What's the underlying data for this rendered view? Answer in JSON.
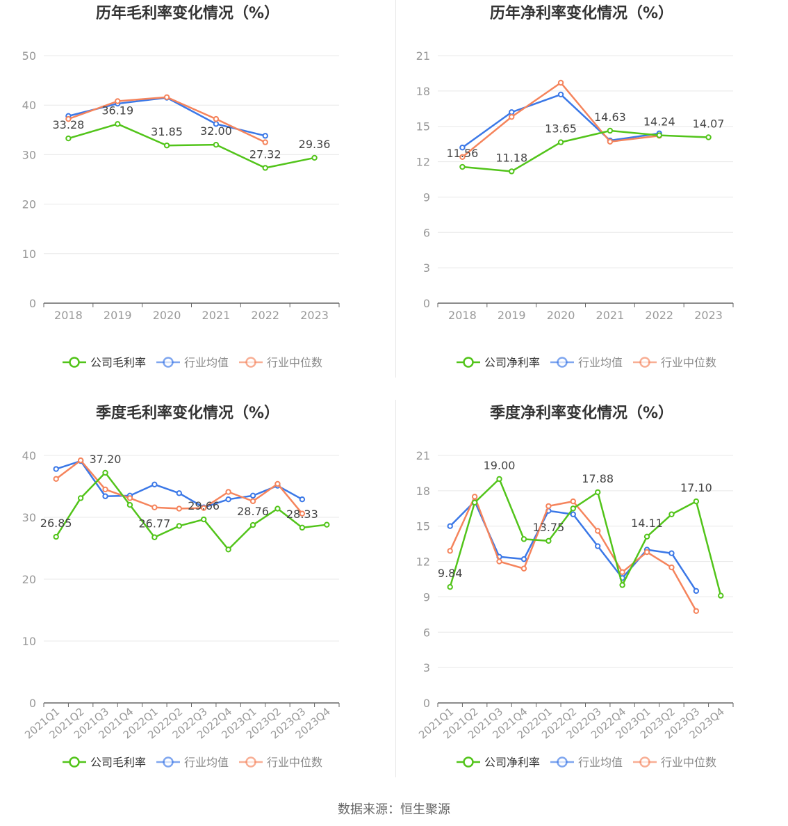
{
  "source": "数据来源：恒生聚源",
  "colors": {
    "company": "#52c41a",
    "avg": "#3b78e7",
    "median": "#f5845c",
    "axis": "#999999",
    "grid": "#e8e8e8"
  },
  "chart_data": [
    {
      "id": "annual-gross",
      "type": "line",
      "title": "历年毛利率变化情况（%）",
      "categories": [
        "2018",
        "2019",
        "2020",
        "2021",
        "2022",
        "2023"
      ],
      "ylim": [
        0,
        50
      ],
      "yticks": [
        0,
        10,
        20,
        30,
        40,
        50
      ],
      "grid": true,
      "legend_placement": "bottom",
      "series": [
        {
          "name": "公司毛利率",
          "color": "#52c41a",
          "values": [
            33.28,
            36.19,
            31.85,
            32.0,
            27.32,
            29.36
          ],
          "labels": [
            "33.28",
            "36.19",
            "31.85",
            "32.00",
            "27.32",
            "29.36"
          ]
        },
        {
          "name": "行业均值",
          "color": "#3b78e7",
          "values": [
            37.8,
            40.3,
            41.5,
            36.2,
            33.8,
            null
          ]
        },
        {
          "name": "行业中位数",
          "color": "#f5845c",
          "values": [
            37.2,
            40.8,
            41.6,
            37.2,
            32.5,
            null
          ]
        }
      ]
    },
    {
      "id": "annual-net",
      "type": "line",
      "title": "历年净利率变化情况（%）",
      "categories": [
        "2018",
        "2019",
        "2020",
        "2021",
        "2022",
        "2023"
      ],
      "ylim": [
        0,
        21
      ],
      "yticks": [
        0,
        3,
        6,
        9,
        12,
        15,
        18,
        21
      ],
      "grid": true,
      "legend_placement": "bottom",
      "series": [
        {
          "name": "公司净利率",
          "color": "#52c41a",
          "values": [
            11.56,
            11.18,
            13.65,
            14.63,
            14.24,
            14.07
          ],
          "labels": [
            "11.56",
            "11.18",
            "13.65",
            "14.63",
            "14.24",
            "14.07"
          ]
        },
        {
          "name": "行业均值",
          "color": "#3b78e7",
          "values": [
            13.2,
            16.2,
            17.7,
            13.8,
            14.4,
            null
          ]
        },
        {
          "name": "行业中位数",
          "color": "#f5845c",
          "values": [
            12.4,
            15.8,
            18.7,
            13.7,
            14.2,
            null
          ]
        }
      ]
    },
    {
      "id": "quarter-gross",
      "type": "line",
      "title": "季度毛利率变化情况（%）",
      "categories": [
        "2021Q1",
        "2021Q2",
        "2021Q3",
        "2021Q4",
        "2022Q1",
        "2022Q2",
        "2022Q3",
        "2022Q4",
        "2023Q1",
        "2023Q2",
        "2023Q3",
        "2023Q4"
      ],
      "ylim": [
        0,
        40
      ],
      "yticks": [
        0,
        10,
        20,
        30,
        40
      ],
      "grid": true,
      "legend_placement": "bottom",
      "series": [
        {
          "name": "公司毛利率",
          "color": "#52c41a",
          "values": [
            26.85,
            33.1,
            37.2,
            32.0,
            26.77,
            28.6,
            29.66,
            24.8,
            28.76,
            31.4,
            28.33,
            28.8
          ],
          "labels": [
            "26.85",
            null,
            "37.20",
            null,
            "26.77",
            null,
            "29.66",
            null,
            "28.76",
            null,
            "28.33",
            null
          ]
        },
        {
          "name": "行业均值",
          "color": "#3b78e7",
          "values": [
            37.8,
            39.1,
            33.4,
            33.5,
            35.3,
            33.9,
            31.6,
            32.9,
            33.5,
            35.1,
            32.9,
            null
          ]
        },
        {
          "name": "行业中位数",
          "color": "#f5845c",
          "values": [
            36.2,
            39.2,
            34.5,
            33.1,
            31.6,
            31.4,
            31.5,
            34.1,
            32.6,
            35.4,
            30.6,
            null
          ]
        }
      ]
    },
    {
      "id": "quarter-net",
      "type": "line",
      "title": "季度净利率变化情况（%）",
      "categories": [
        "2021Q1",
        "2021Q2",
        "2021Q3",
        "2021Q4",
        "2022Q1",
        "2022Q2",
        "2022Q3",
        "2022Q4",
        "2023Q1",
        "2023Q2",
        "2023Q3",
        "2023Q4"
      ],
      "ylim": [
        0,
        21
      ],
      "yticks": [
        0,
        3,
        6,
        9,
        12,
        15,
        18,
        21
      ],
      "grid": true,
      "legend_placement": "bottom",
      "series": [
        {
          "name": "公司净利率",
          "color": "#52c41a",
          "values": [
            9.84,
            17.0,
            19.0,
            13.9,
            13.75,
            16.5,
            17.88,
            10.0,
            14.11,
            16.0,
            17.1,
            9.1
          ],
          "labels": [
            "9.84",
            null,
            "19.00",
            null,
            "13.75",
            null,
            "17.88",
            null,
            "14.11",
            null,
            "17.10",
            null
          ]
        },
        {
          "name": "行业均值",
          "color": "#3b78e7",
          "values": [
            15.0,
            17.1,
            12.4,
            12.2,
            16.3,
            16.0,
            13.3,
            10.6,
            13.0,
            12.7,
            9.5,
            null
          ]
        },
        {
          "name": "行业中位数",
          "color": "#f5845c",
          "values": [
            12.9,
            17.5,
            12.0,
            11.4,
            16.7,
            17.1,
            14.6,
            11.1,
            12.8,
            11.5,
            7.8,
            null
          ]
        }
      ]
    }
  ]
}
